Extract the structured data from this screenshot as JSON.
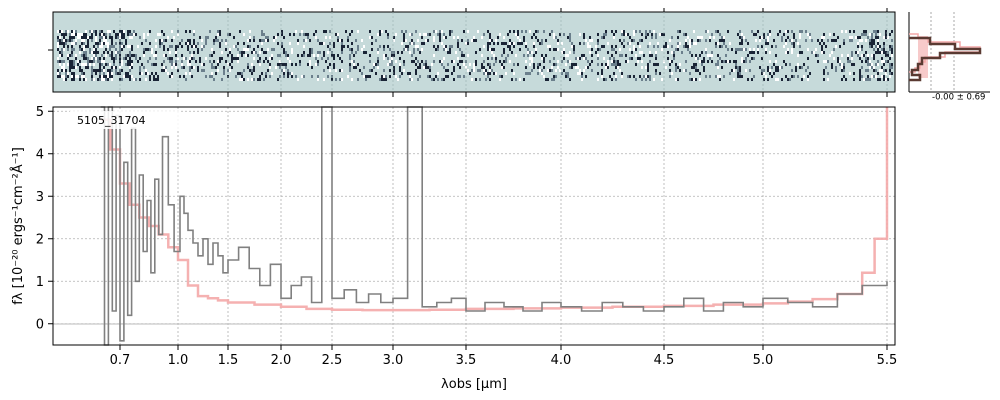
{
  "chart_data": {
    "type": "line",
    "spectrum_id": "5105_31704",
    "xlabel": "λobs [μm]",
    "ylabel": "fλ [10⁻²⁰ ergs⁻¹cm⁻²Å⁻¹]",
    "xticks": [
      "0.7",
      "1.0",
      "1.5",
      "2.0",
      "2.5",
      "3.0",
      "3.5",
      "4.0",
      "4.5",
      "5.0",
      "5.5"
    ],
    "xtick_values": [
      0.7,
      1.0,
      1.5,
      2.0,
      2.5,
      3.0,
      3.5,
      4.0,
      4.5,
      5.0,
      5.5
    ],
    "yticks": [
      0,
      1,
      2,
      3,
      4,
      5
    ],
    "ylim": [
      -0.5,
      5.1
    ],
    "grid": true,
    "histogram_annotation": "-0.00 ± 0.69",
    "colors": {
      "data": "#808080",
      "model": "#f4a8a8",
      "twod_bg": "#c6dada",
      "hist_model": "#f4b4b4",
      "hist_data": "#5a3a32"
    },
    "series": [
      {
        "x": [
          0.6,
          0.62,
          0.64,
          0.66,
          0.68,
          0.7,
          0.72,
          0.74,
          0.76,
          0.78,
          0.8,
          0.82,
          0.84,
          0.86,
          0.88,
          0.9,
          0.92,
          0.95,
          0.98,
          1.02,
          1.06,
          1.1,
          1.15,
          1.2,
          1.25,
          1.3,
          1.35,
          1.4,
          1.45,
          1.5,
          1.6,
          1.7,
          1.8,
          1.9,
          2.0,
          2.1,
          2.2,
          2.3,
          2.4,
          2.5,
          2.6,
          2.7,
          2.8,
          2.9,
          3.0,
          3.1,
          3.2,
          3.3,
          3.4,
          3.5,
          3.6,
          3.7,
          3.8,
          3.9,
          4.0,
          4.1,
          4.2,
          4.3,
          4.4,
          4.5,
          4.6,
          4.7,
          4.8,
          4.9,
          5.0,
          5.1,
          5.2,
          5.3,
          5.4,
          5.5
        ],
        "values": [
          5.1,
          -0.5,
          5.1,
          0.3,
          4.9,
          -0.4,
          3.8,
          0.2,
          4.6,
          1.0,
          3.5,
          1.7,
          2.9,
          1.2,
          3.4,
          2.1,
          4.4,
          2.8,
          1.7,
          3.0,
          2.6,
          2.2,
          1.9,
          1.6,
          2.0,
          1.4,
          1.9,
          1.6,
          1.2,
          1.5,
          1.8,
          1.3,
          0.9,
          1.4,
          0.6,
          0.9,
          1.1,
          0.5,
          5.1,
          0.6,
          0.8,
          0.5,
          0.7,
          0.5,
          0.6,
          5.1,
          0.4,
          0.5,
          0.6,
          0.3,
          0.5,
          0.4,
          0.3,
          0.5,
          0.4,
          0.3,
          0.5,
          0.4,
          0.3,
          0.4,
          0.6,
          0.3,
          0.5,
          0.4,
          0.6,
          0.5,
          0.4,
          0.7,
          0.9,
          1.0
        ]
      },
      {
        "x": [
          0.6,
          0.65,
          0.7,
          0.75,
          0.8,
          0.85,
          0.9,
          0.95,
          1.0,
          1.1,
          1.2,
          1.3,
          1.4,
          1.5,
          1.75,
          2.0,
          2.25,
          2.5,
          2.75,
          3.0,
          3.25,
          3.5,
          3.75,
          4.0,
          4.25,
          4.5,
          4.75,
          5.0,
          5.1,
          5.2,
          5.3,
          5.4,
          5.45,
          5.5
        ],
        "values": [
          4.8,
          4.1,
          3.3,
          2.8,
          2.5,
          2.3,
          2.1,
          1.8,
          1.5,
          0.9,
          0.65,
          0.6,
          0.55,
          0.5,
          0.45,
          0.4,
          0.35,
          0.33,
          0.32,
          0.32,
          0.33,
          0.35,
          0.36,
          0.38,
          0.4,
          0.42,
          0.45,
          0.48,
          0.52,
          0.58,
          0.7,
          1.2,
          2.0,
          5.1
        ]
      }
    ]
  }
}
